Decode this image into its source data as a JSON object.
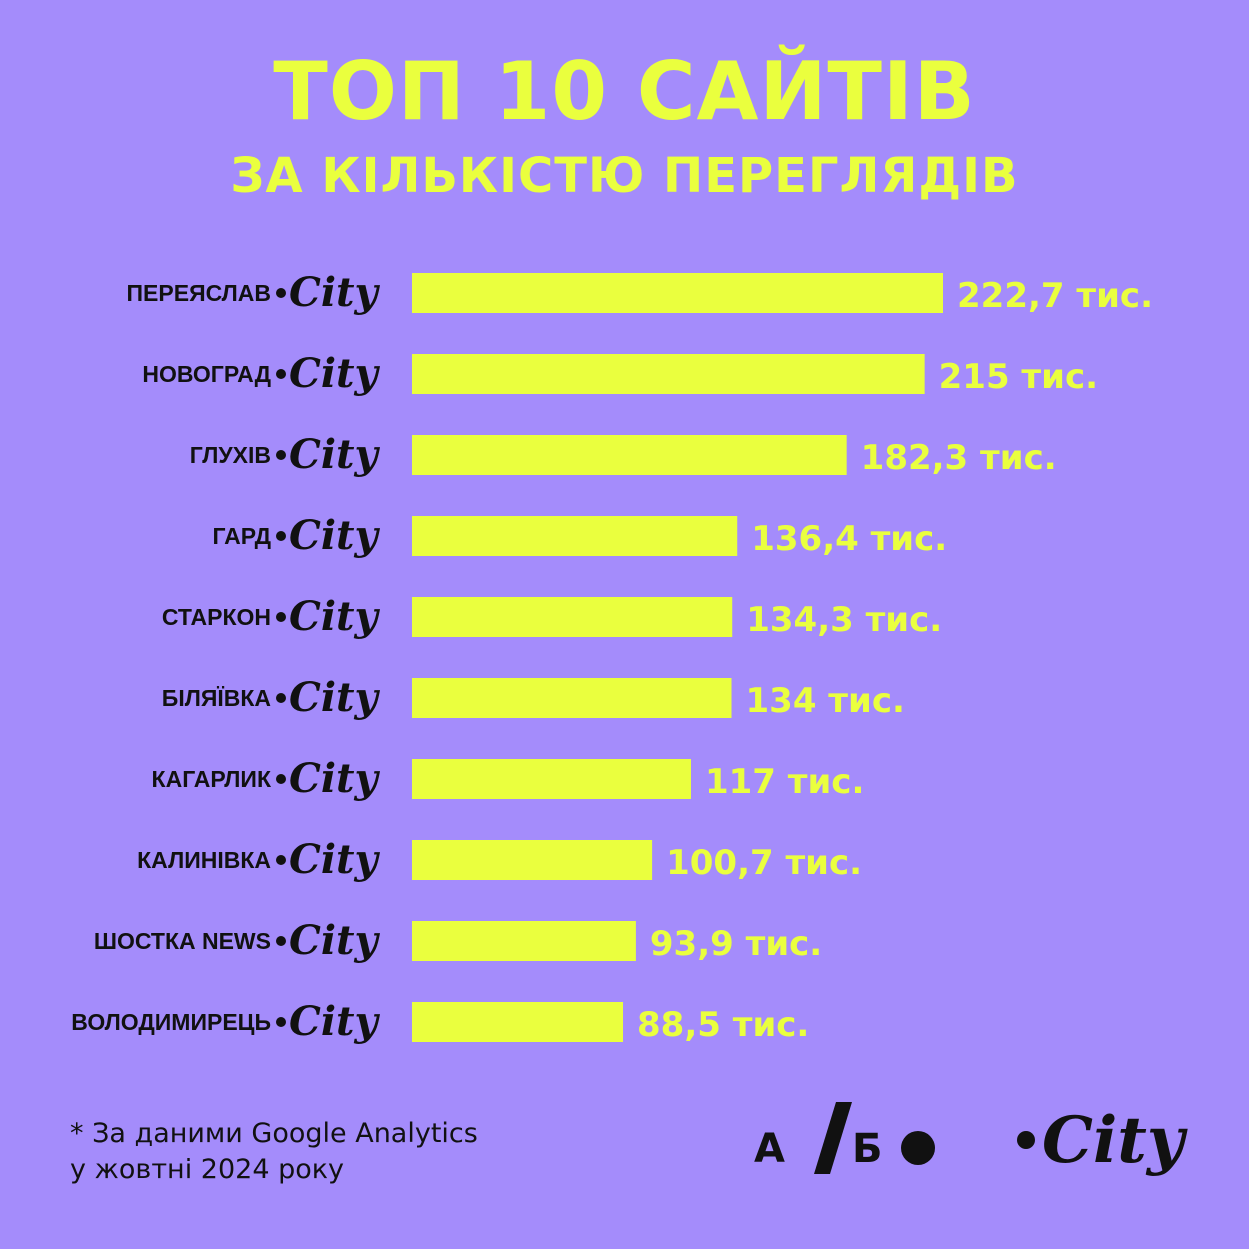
{
  "header": {
    "title": "ТОП 10 САЙТІВ",
    "subtitle": "ЗА КІЛЬКІСТЮ ПЕРЕГЛЯДІВ"
  },
  "chart_data": {
    "type": "bar",
    "orientation": "horizontal",
    "title": "ТОП 10 САЙТІВ",
    "subtitle": "ЗА КІЛЬКІСТЮ ПЕРЕГЛЯДІВ",
    "categories": [
      "ПЕРЕЯСЛАВ",
      "НОВОГРАД",
      "ГЛУХІВ",
      "ГАРД",
      "СТАРКОН",
      "БІЛЯЇВКА",
      "КАГАРЛИК",
      "КАЛИНІВКА",
      "ШОСТКА NEWS",
      "ВОЛОДИМИРЕЦЬ"
    ],
    "values": [
      222.7,
      215,
      182.3,
      136.4,
      134.3,
      134,
      117,
      100.7,
      93.9,
      88.5
    ],
    "value_labels": [
      "222,7 тис.",
      "215 тис.",
      "182,3 тис.",
      "136,4 тис.",
      "134,3 тис.",
      "134 тис.",
      "117 тис.",
      "100,7 тис.",
      "93,9 тис.",
      "88,5 тис."
    ],
    "category_suffix": "City",
    "xlim": [
      0,
      222.7
    ],
    "grid": false,
    "bar_color": "#eaff3e",
    "background_color": "#a48cfb"
  },
  "footer": {
    "note_line1": "* За даними Google Analytics",
    "note_line2": "у жовтні 2024 року",
    "logo_ab_left": "А",
    "logo_ab_right": "Б",
    "logo_city": "City"
  }
}
